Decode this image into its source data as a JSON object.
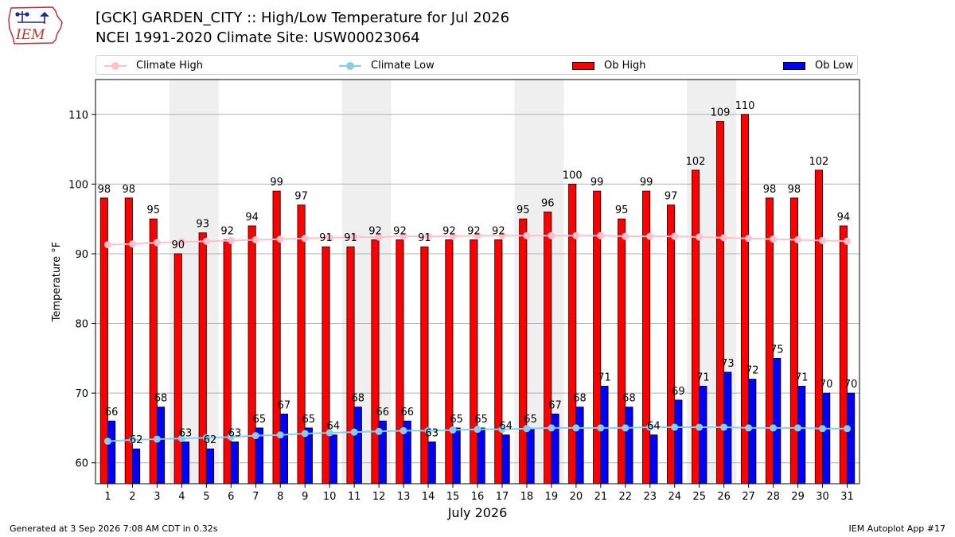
{
  "logo": {
    "text": "IEM"
  },
  "header": {
    "title": "[GCK] GARDEN_CITY :: High/Low Temperature for Jul 2026",
    "subtitle": "NCEI 1991-2020 Climate Site: USW00023064"
  },
  "legend": {
    "climate_high": "Climate High",
    "climate_low": "Climate Low",
    "ob_high": "Ob High",
    "ob_low": "Ob Low"
  },
  "footer": {
    "generated": "Generated at 3 Sep 2026 7:08 AM CDT in 0.32s",
    "app": "IEM Autoplot App #17"
  },
  "chart_data": {
    "type": "bar",
    "xlabel": "July 2026",
    "ylabel": "Temperature °F",
    "ylim": [
      57,
      115
    ],
    "yticks": [
      60,
      70,
      80,
      90,
      100,
      110
    ],
    "grid": "horizontal",
    "legend_placement": "top",
    "weekend_shading_days": [
      4,
      5,
      11,
      12,
      18,
      19,
      25,
      26
    ],
    "categories": [
      1,
      2,
      3,
      4,
      5,
      6,
      7,
      8,
      9,
      10,
      11,
      12,
      13,
      14,
      15,
      16,
      17,
      18,
      19,
      20,
      21,
      22,
      23,
      24,
      25,
      26,
      27,
      28,
      29,
      30,
      31
    ],
    "series": [
      {
        "name": "Ob High",
        "type": "bar",
        "color": "#ff0000",
        "values": [
          98,
          98,
          95,
          90,
          93,
          92,
          94,
          99,
          97,
          91,
          91,
          92,
          92,
          91,
          92,
          92,
          92,
          95,
          96,
          100,
          99,
          95,
          99,
          97,
          102,
          109,
          110,
          98,
          98,
          102,
          94
        ]
      },
      {
        "name": "Ob Low",
        "type": "bar",
        "color": "#0000ff",
        "values": [
          66,
          62,
          68,
          63,
          62,
          63,
          65,
          67,
          65,
          64,
          68,
          66,
          66,
          63,
          65,
          65,
          64,
          65,
          67,
          68,
          71,
          68,
          64,
          69,
          71,
          73,
          72,
          75,
          71,
          70,
          70
        ]
      },
      {
        "name": "Climate High",
        "type": "line",
        "color": "#ffc0cb",
        "values": [
          91.3,
          91.4,
          91.6,
          91.7,
          91.8,
          91.9,
          92.0,
          92.1,
          92.2,
          92.3,
          92.4,
          92.4,
          92.5,
          92.5,
          92.5,
          92.6,
          92.6,
          92.6,
          92.6,
          92.6,
          92.6,
          92.5,
          92.5,
          92.5,
          92.4,
          92.3,
          92.2,
          92.1,
          92.0,
          91.9,
          91.8
        ]
      },
      {
        "name": "Climate Low",
        "type": "line",
        "color": "#87ceeb",
        "values": [
          63.1,
          63.3,
          63.4,
          63.5,
          63.6,
          63.7,
          63.9,
          64.0,
          64.2,
          64.3,
          64.4,
          64.5,
          64.6,
          64.6,
          64.7,
          64.8,
          64.8,
          64.9,
          65.0,
          65.0,
          65.0,
          65.0,
          65.1,
          65.1,
          65.1,
          65.1,
          65.0,
          65.0,
          65.0,
          64.9,
          64.9
        ]
      }
    ]
  }
}
